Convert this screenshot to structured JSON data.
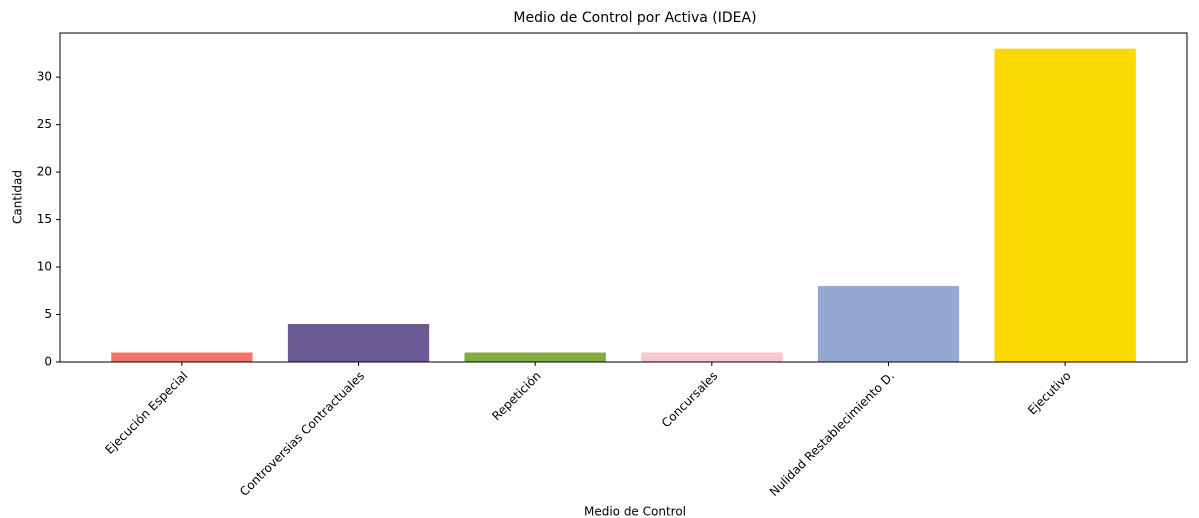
{
  "chart_data": {
    "type": "bar",
    "title": "Medio de Control por Activa (IDEA)",
    "x_label": "Medio de Control",
    "y_label": "Cantidad",
    "categories": [
      "Ejecución Especial",
      "Controversias Contractuales",
      "Repetición",
      "Concursales",
      "Nulidad Restablecimiento D.",
      "Ejecutivo"
    ],
    "values": [
      1,
      4,
      1,
      1,
      8,
      33
    ],
    "colors": [
      "#f4726a",
      "#6a5a96",
      "#82ab44",
      "#f6c9cc",
      "#94a8d2",
      "#fbd800"
    ],
    "ylim": [
      0,
      34.65
    ],
    "yticks": [
      0,
      5,
      10,
      15,
      20,
      25,
      30
    ],
    "grid": false
  }
}
